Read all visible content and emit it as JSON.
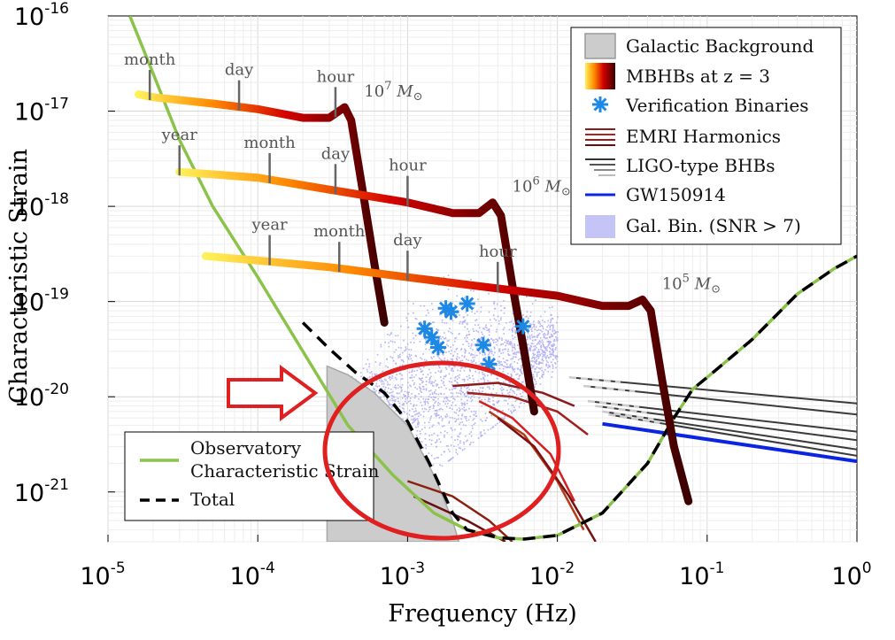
{
  "chart_data": {
    "type": "line",
    "xlabel": "Frequency (Hz)",
    "ylabel": "Characteristic Strain",
    "xscale": "log",
    "yscale": "log",
    "xlim": [
      1e-05,
      1.0
    ],
    "ylim": [
      3e-22,
      1e-16
    ],
    "grid": true,
    "x_ticks": [
      {
        "base": "10",
        "exp": "-5",
        "value": 1e-05
      },
      {
        "base": "10",
        "exp": "-4",
        "value": 0.0001
      },
      {
        "base": "10",
        "exp": "-3",
        "value": 0.001
      },
      {
        "base": "10",
        "exp": "-2",
        "value": 0.01
      },
      {
        "base": "10",
        "exp": "-1",
        "value": 0.1
      },
      {
        "base": "10",
        "exp": "0",
        "value": 1
      }
    ],
    "y_ticks": [
      {
        "base": "10",
        "exp": "-16",
        "value": 1e-16
      },
      {
        "base": "10",
        "exp": "-17",
        "value": 1e-17
      },
      {
        "base": "10",
        "exp": "-18",
        "value": 1e-18
      },
      {
        "base": "10",
        "exp": "-19",
        "value": 1e-19
      },
      {
        "base": "10",
        "exp": "-20",
        "value": 1e-20
      },
      {
        "base": "10",
        "exp": "-21",
        "value": 1e-21
      }
    ],
    "legend_main": {
      "placement": "top-right",
      "items": [
        {
          "label": "Galactic Background",
          "icon": "gray-box"
        },
        {
          "label": "MBHBs at z = 3",
          "icon": "heat-gradient-bar"
        },
        {
          "label": "Verification Binaries",
          "icon": "blue-asterisk"
        },
        {
          "label": "EMRI Harmonics",
          "icon": "dark-red-lines"
        },
        {
          "label": "LIGO-type BHBs",
          "icon": "gray-lines"
        },
        {
          "label": "GW150914",
          "icon": "blue-line"
        },
        {
          "label": "Gal. Bin. (SNR > 7)",
          "icon": "lavender-dots"
        }
      ]
    },
    "legend_sensitivity": {
      "placement": "bottom-left",
      "items": [
        {
          "label_line1": "Observatory",
          "label_line2": "Characteristic Strain",
          "style": "green-solid"
        },
        {
          "label_line1": "Total",
          "label_line2": "",
          "style": "black-dashed"
        }
      ]
    },
    "sensitivity_curve": {
      "name": "Observatory Characteristic Strain",
      "color": "#8bc34a",
      "x": [
        1.4e-05,
        2e-05,
        3e-05,
        5e-05,
        0.0001,
        0.0002,
        0.0004,
        0.0008,
        0.0015,
        0.0025,
        0.004,
        0.006,
        0.01,
        0.02,
        0.04,
        0.06,
        0.08,
        0.1,
        0.2,
        0.4,
        0.7,
        1.0
      ],
      "y": [
        1e-16,
        2.5e-17,
        5e-18,
        1e-18,
        1.8e-19,
        3e-20,
        5e-21,
        1.5e-21,
        6e-22,
        4e-22,
        3.3e-22,
        3.2e-22,
        3.5e-22,
        6e-22,
        2e-21,
        6e-21,
        1.2e-20,
        1.6e-20,
        4e-20,
        1.2e-19,
        2.2e-19,
        3e-19
      ]
    },
    "total_curve": {
      "name": "Total",
      "color": "#000000",
      "x": [
        0.0002,
        0.0003,
        0.00045,
        0.0007,
        0.001,
        0.0014,
        0.002
      ],
      "y": [
        6e-20,
        3.2e-20,
        1.8e-20,
        1.1e-20,
        5.5e-21,
        2e-21,
        6e-22
      ]
    },
    "galactic_background": {
      "name": "Galactic Background",
      "color": "#cccccc",
      "x": [
        0.00029,
        0.0004,
        0.0006,
        0.001,
        0.0015,
        0.002,
        0.0022
      ],
      "y": [
        2.1e-20,
        1.7e-20,
        1.1e-20,
        5e-21,
        1.5e-21,
        5e-22,
        3e-22
      ]
    },
    "mbhb_tracks": [
      {
        "mass_label": "10",
        "mass_exp": "7",
        "x": [
          1.6e-05,
          2e-05,
          5e-05,
          0.0001,
          0.0002,
          0.0003,
          0.00038,
          0.00042,
          0.0005,
          0.0006,
          0.0007
        ],
        "y": [
          1.5e-17,
          1.4e-17,
          1.2e-17,
          1.05e-17,
          8.5e-18,
          8.5e-18,
          1.1e-17,
          8e-18,
          1.5e-18,
          2.5e-19,
          6e-20
        ],
        "time_marks": [
          {
            "label": "month",
            "x": 1.9e-05
          },
          {
            "label": "day",
            "x": 7.5e-05
          },
          {
            "label": "hour",
            "x": 0.00033
          }
        ]
      },
      {
        "mass_label": "10",
        "mass_exp": "6",
        "x": [
          3e-05,
          0.0001,
          0.0003,
          0.001,
          0.002,
          0.003,
          0.0037,
          0.0042,
          0.005,
          0.006,
          0.007
        ],
        "y": [
          2.3e-18,
          2e-18,
          1.5e-18,
          1.1e-18,
          8.5e-19,
          8.5e-19,
          1.1e-18,
          8e-19,
          1.5e-19,
          3e-20,
          7e-21
        ],
        "time_marks": [
          {
            "label": "year",
            "x": 3e-05
          },
          {
            "label": "month",
            "x": 0.00012
          },
          {
            "label": "day",
            "x": 0.00033
          },
          {
            "label": "hour",
            "x": 0.001
          }
        ]
      },
      {
        "mass_label": "10",
        "mass_exp": "5",
        "x": [
          4.5e-05,
          0.0001,
          0.0003,
          0.001,
          0.003,
          0.01,
          0.02,
          0.03,
          0.037,
          0.042,
          0.05,
          0.06,
          0.075
        ],
        "y": [
          3e-19,
          2.7e-19,
          2.3e-19,
          1.8e-19,
          1.45e-19,
          1.15e-19,
          9e-20,
          9e-20,
          1.05e-19,
          8e-20,
          1.5e-20,
          3e-21,
          8e-22
        ],
        "time_marks": [
          {
            "label": "year",
            "x": 0.00012
          },
          {
            "label": "month",
            "x": 0.00035
          },
          {
            "label": "day",
            "x": 0.001
          },
          {
            "label": "hour",
            "x": 0.004
          }
        ]
      }
    ],
    "verification_binaries": {
      "color": "#1e88e5",
      "x": [
        0.0013,
        0.00145,
        0.0016,
        0.0018,
        0.00195,
        0.0025,
        0.0032,
        0.0035,
        0.0059
      ],
      "y": [
        5.2e-20,
        4.2e-20,
        3.3e-20,
        8.5e-20,
        7.8e-20,
        9.5e-20,
        3.5e-20,
        2.2e-20,
        5.5e-20
      ]
    },
    "emri_harmonics": {
      "color": "#8b1a1a",
      "tracks": [
        {
          "x": [
            0.002,
            0.004,
            0.008,
            0.013
          ],
          "y": [
            1.3e-20,
            1.4e-20,
            1.1e-20,
            8e-21
          ]
        },
        {
          "x": [
            0.0025,
            0.005,
            0.01,
            0.016
          ],
          "y": [
            1.1e-20,
            1e-20,
            7e-21,
            4e-21
          ]
        },
        {
          "x": [
            0.003,
            0.005,
            0.009,
            0.013
          ],
          "y": [
            9e-21,
            6e-21,
            2.5e-21,
            8e-22
          ]
        },
        {
          "x": [
            0.0035,
            0.006,
            0.01,
            0.015
          ],
          "y": [
            7e-21,
            4e-21,
            1.3e-21,
            4e-22
          ]
        },
        {
          "x": [
            0.004,
            0.007,
            0.012,
            0.018
          ],
          "y": [
            6e-21,
            3e-21,
            9e-22,
            3e-22
          ]
        },
        {
          "x": [
            0.001,
            0.002,
            0.0035,
            0.005
          ],
          "y": [
            1.3e-21,
            9e-22,
            5e-22,
            3e-22
          ]
        },
        {
          "x": [
            0.0011,
            0.0025,
            0.0045
          ],
          "y": [
            9e-22,
            5e-22,
            3e-22
          ]
        }
      ]
    },
    "ligo_bhbs": {
      "color": "#333333",
      "tracks": [
        {
          "x": [
            0.012,
            1.0
          ],
          "y": [
            1.6e-20,
            8.5e-21
          ]
        },
        {
          "x": [
            0.015,
            1.0
          ],
          "y": [
            1.3e-20,
            6.5e-21
          ]
        },
        {
          "x": [
            0.016,
            1.0
          ],
          "y": [
            9e-21,
            4.3e-21
          ]
        },
        {
          "x": [
            0.018,
            1.0
          ],
          "y": [
            8e-21,
            3.5e-21
          ]
        },
        {
          "x": [
            0.02,
            1.0
          ],
          "y": [
            7e-21,
            2.8e-21
          ]
        },
        {
          "x": [
            0.022,
            1.0
          ],
          "y": [
            6.5e-21,
            2.4e-21
          ]
        }
      ]
    },
    "gw150914": {
      "name": "GW150914",
      "color": "#0b24e0",
      "x": [
        0.02,
        1.0
      ],
      "y": [
        5.2e-21,
        2.1e-21
      ]
    },
    "galactic_binaries_cloud": {
      "name": "Gal. Bin. (SNR > 7)",
      "color": "#b3b3f5",
      "x_range": [
        0.0003,
        0.01
      ],
      "y_range": [
        2e-21,
        2e-19
      ]
    },
    "annotation_arrow": {
      "color": "#e02020"
    },
    "highlight_ellipse": {
      "color": "#e02020"
    }
  }
}
